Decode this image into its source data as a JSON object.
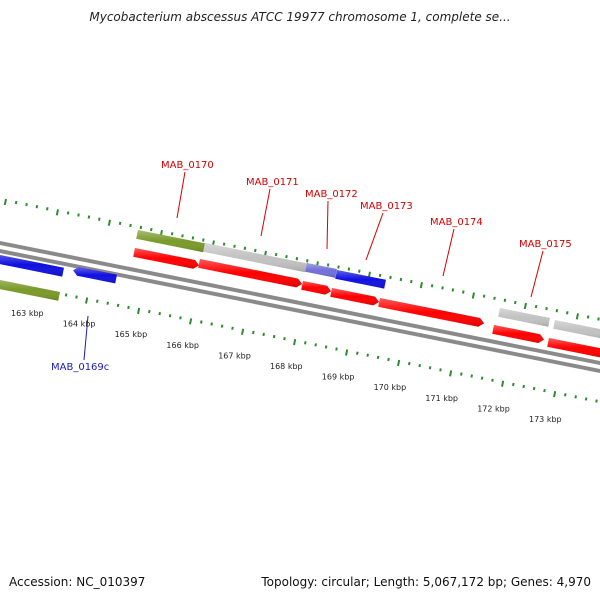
{
  "header": {
    "title": "Mycobacterium abscessus ATCC 19977 chromosome 1, complete se..."
  },
  "map": {
    "scale_labels": [
      "163 kbp",
      "164 kbp",
      "165 kbp",
      "166 kbp",
      "167 kbp",
      "168 kbp",
      "169 kbp",
      "170 kbp",
      "171 kbp",
      "172 kbp",
      "173 kbp"
    ],
    "genes": [
      {
        "name": "MAB_0169c",
        "color": "#1a1ab8",
        "strand": "reverse"
      },
      {
        "name": "MAB_0170",
        "color": "#d40000",
        "strand": "forward"
      },
      {
        "name": "MAB_0171",
        "color": "#d40000",
        "strand": "forward"
      },
      {
        "name": "MAB_0172",
        "color": "#d40000",
        "strand": "forward"
      },
      {
        "name": "MAB_0173",
        "color": "#d40000",
        "strand": "forward"
      },
      {
        "name": "MAB_0174",
        "color": "#d40000",
        "strand": "forward"
      },
      {
        "name": "MAB_0175",
        "color": "#d40000",
        "strand": "forward"
      }
    ],
    "colors": {
      "cds": "#ff0000",
      "reverse_cds": "#1010e0",
      "gc_high": "#7a9a2a",
      "gc_low": "#c2c2c2",
      "gc_mid": "#7070d8",
      "backbone": "#8a8a8a",
      "tick": "#2e8b2e",
      "forward_label": "#d40000",
      "reverse_label": "#1a1ab8"
    }
  },
  "footer": {
    "accession": "Accession: NC_010397",
    "summary": "Topology: circular; Length: 5,067,172 bp; Genes: 4,970"
  }
}
